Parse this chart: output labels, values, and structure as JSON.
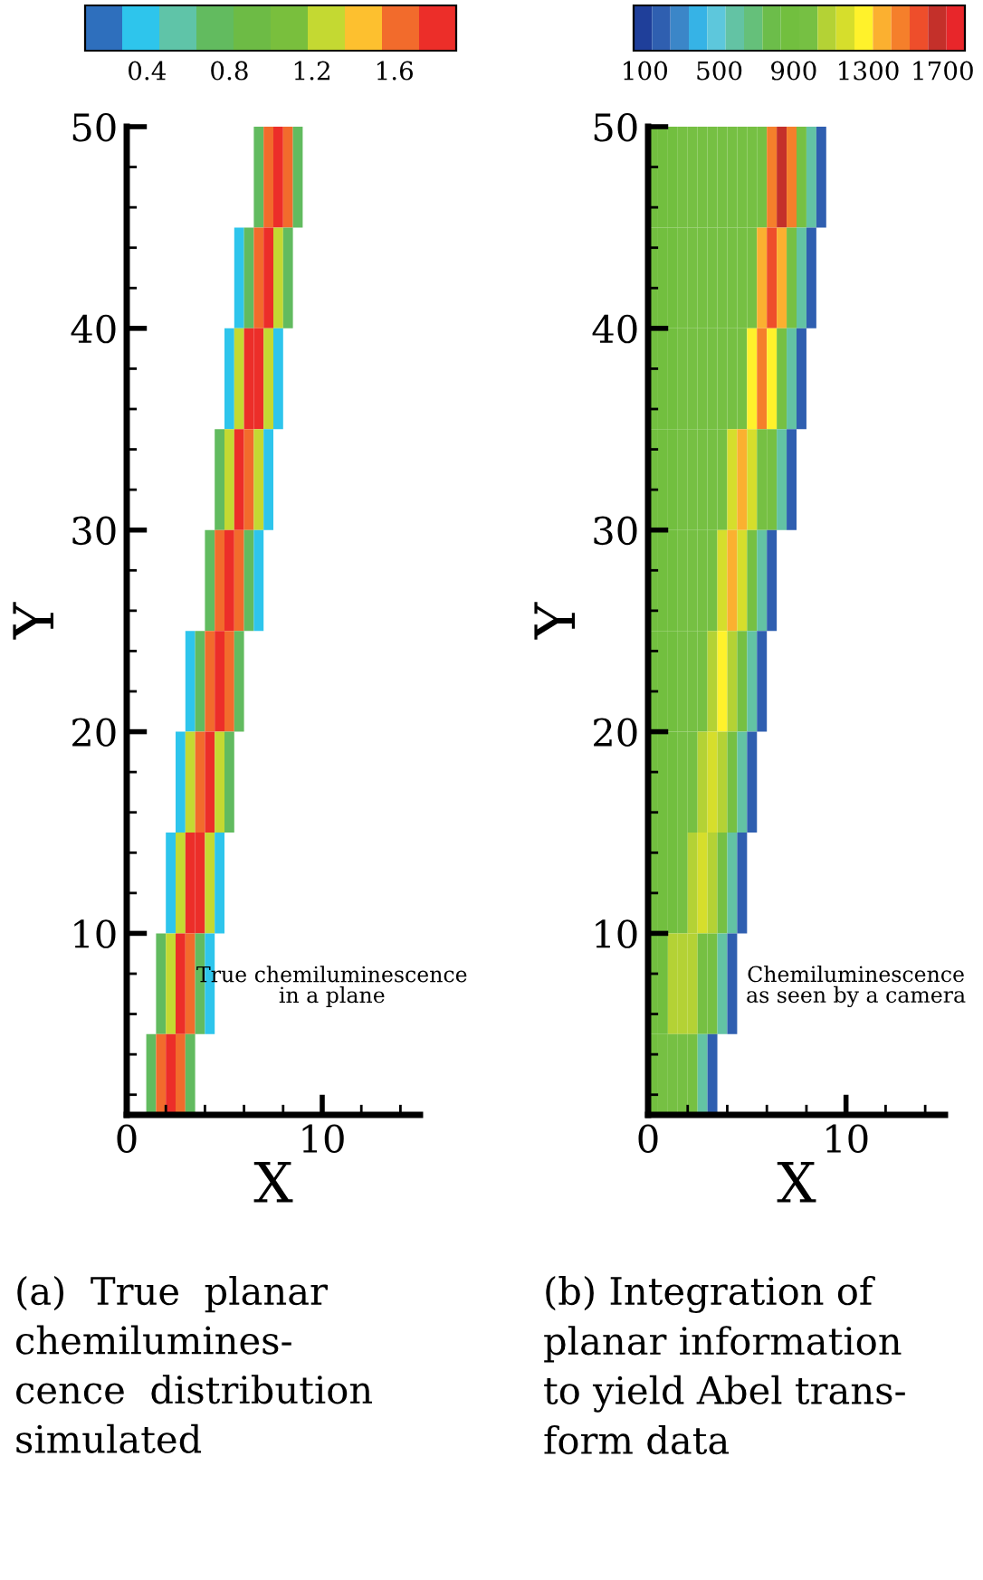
{
  "chart_data": [
    {
      "type": "heatmap",
      "xlabel": "X",
      "ylabel": "Y",
      "annotations": [
        "True chemiluminescence\nin a plane",
        "(a)  True  planar\nchemilumines-\ncence  distribution\nsimulated"
      ],
      "xlim": [
        0,
        15
      ],
      "xticks": [
        0,
        10
      ],
      "ylim": [
        1,
        50
      ],
      "yticks": [
        10,
        20,
        30,
        40,
        50
      ],
      "clim": [
        0.1,
        1.9
      ],
      "cticks": [
        0.4,
        0.8,
        1.2,
        1.6
      ],
      "colors": [
        "#2e6fbd",
        "#2ec5ec",
        "#5fc4a8",
        "#62bb5f",
        "#6dbb45",
        "#79bf3d",
        "#c4d932",
        "#fdc02f",
        "#f26b2c",
        "#ec2e29"
      ],
      "x": [
        0.25,
        0.75,
        1.25,
        1.75,
        2.25,
        2.75,
        3.25,
        3.75,
        4.25,
        4.75,
        5.25,
        5.75,
        6.25,
        6.75,
        7.25,
        7.75,
        8.25,
        8.75,
        9.25,
        9.75
      ],
      "y": [
        47.5,
        42.5,
        37.5,
        32.5,
        27.5,
        22.5,
        17.5,
        12.5,
        7.5,
        2.5
      ],
      "cells": [
        [
          null,
          null,
          null,
          null,
          null,
          null,
          null,
          null,
          null,
          null,
          null,
          null,
          null,
          0.8,
          1.6,
          1.8,
          1.6,
          0.8,
          null,
          null
        ],
        [
          null,
          null,
          null,
          null,
          null,
          null,
          null,
          null,
          null,
          null,
          null,
          0.4,
          0.8,
          1.6,
          1.8,
          1.2,
          0.8,
          null,
          null,
          null
        ],
        [
          null,
          null,
          null,
          null,
          null,
          null,
          null,
          null,
          null,
          null,
          0.4,
          1.2,
          1.8,
          1.8,
          1.2,
          0.4,
          null,
          null,
          null,
          null
        ],
        [
          null,
          null,
          null,
          null,
          null,
          null,
          null,
          null,
          null,
          0.8,
          1.2,
          1.8,
          1.6,
          1.2,
          0.4,
          null,
          null,
          null,
          null,
          null
        ],
        [
          null,
          null,
          null,
          null,
          null,
          null,
          null,
          null,
          0.8,
          1.6,
          1.8,
          1.6,
          0.8,
          0.4,
          null,
          null,
          null,
          null,
          null,
          null
        ],
        [
          null,
          null,
          null,
          null,
          null,
          null,
          0.4,
          0.8,
          1.6,
          1.8,
          1.6,
          0.8,
          null,
          null,
          null,
          null,
          null,
          null,
          null,
          null
        ],
        [
          null,
          null,
          null,
          null,
          null,
          0.4,
          1.2,
          1.6,
          1.8,
          1.2,
          0.8,
          null,
          null,
          null,
          null,
          null,
          null,
          null,
          null,
          null
        ],
        [
          null,
          null,
          null,
          null,
          0.4,
          1.2,
          1.8,
          1.8,
          1.2,
          0.4,
          null,
          null,
          null,
          null,
          null,
          null,
          null,
          null,
          null,
          null
        ],
        [
          null,
          null,
          null,
          0.8,
          1.2,
          1.8,
          1.6,
          0.8,
          0.4,
          null,
          null,
          null,
          null,
          null,
          null,
          null,
          null,
          null,
          null,
          null
        ],
        [
          null,
          null,
          0.8,
          1.6,
          1.8,
          1.6,
          0.8,
          null,
          null,
          null,
          null,
          null,
          null,
          null,
          null,
          null,
          null,
          null,
          null,
          null
        ]
      ]
    },
    {
      "type": "heatmap",
      "xlabel": "X",
      "ylabel": "Y",
      "annotations": [
        "Chemiluminescence\nas seen by a camera",
        "(b) Integration of\nplanar information\nto yield Abel trans-\nform data"
      ],
      "xlim": [
        0,
        15
      ],
      "xticks": [
        0,
        10
      ],
      "ylim": [
        1,
        50
      ],
      "yticks": [
        10,
        20,
        30,
        40,
        50
      ],
      "clim": [
        40,
        1820
      ],
      "cticks": [
        100,
        500,
        900,
        1300,
        1700
      ],
      "colors": [
        "#1f3f9a",
        "#2f5fb0",
        "#3b86c8",
        "#36b3e6",
        "#5dc7dc",
        "#63c3a4",
        "#65c07a",
        "#6cbd4a",
        "#72bf3f",
        "#76c043",
        "#b4d235",
        "#d6de2c",
        "#fff22b",
        "#fbb030",
        "#f57f2b",
        "#ee4e2b",
        "#c4302a",
        "#e8262a"
      ],
      "x": [
        0.25,
        0.75,
        1.25,
        1.75,
        2.25,
        2.75,
        3.25,
        3.75,
        4.25,
        4.75,
        5.25,
        5.75,
        6.25,
        6.75,
        7.25,
        7.75,
        8.25,
        8.75,
        9.25,
        9.75
      ],
      "y": [
        47.5,
        42.5,
        37.5,
        32.5,
        27.5,
        22.5,
        17.5,
        12.5,
        7.5,
        2.5
      ],
      "cells": [
        [
          900,
          900,
          900,
          1000,
          1000,
          1000,
          1000,
          1000,
          1000,
          1000,
          1000,
          1000,
          1450,
          1700,
          1450,
          1000,
          600,
          200,
          null,
          null
        ],
        [
          900,
          900,
          900,
          1000,
          1000,
          1000,
          1000,
          1000,
          1000,
          1000,
          1000,
          1350,
          1600,
          1350,
          1000,
          600,
          200,
          null,
          null,
          null
        ],
        [
          900,
          900,
          900,
          1000,
          1000,
          1000,
          1000,
          1000,
          1000,
          1000,
          1250,
          1500,
          1250,
          1000,
          600,
          200,
          null,
          null,
          null,
          null
        ],
        [
          900,
          900,
          900,
          1000,
          1000,
          1000,
          1000,
          1000,
          1200,
          1400,
          1200,
          1000,
          1000,
          600,
          200,
          null,
          null,
          null,
          null,
          null
        ],
        [
          900,
          900,
          900,
          1000,
          1000,
          1000,
          1000,
          1150,
          1350,
          1150,
          1000,
          600,
          200,
          null,
          null,
          null,
          null,
          null,
          null,
          null
        ],
        [
          900,
          900,
          900,
          1000,
          1000,
          1000,
          1100,
          1300,
          1100,
          1000,
          600,
          200,
          null,
          null,
          null,
          null,
          null,
          null,
          null,
          null
        ],
        [
          900,
          900,
          900,
          1000,
          1000,
          1100,
          1200,
          1100,
          1000,
          600,
          200,
          null,
          null,
          null,
          null,
          null,
          null,
          null,
          null,
          null
        ],
        [
          900,
          900,
          900,
          1000,
          1050,
          1150,
          1050,
          1000,
          600,
          200,
          null,
          null,
          null,
          null,
          null,
          null,
          null,
          null,
          null,
          null
        ],
        [
          900,
          900,
          1050,
          1100,
          1050,
          1000,
          1000,
          600,
          200,
          null,
          null,
          null,
          null,
          null,
          null,
          null,
          null,
          null,
          null,
          null
        ],
        [
          900,
          950,
          1000,
          1000,
          1000,
          600,
          200,
          null,
          null,
          null,
          null,
          null,
          null,
          null,
          null,
          null,
          null,
          null,
          null,
          null
        ]
      ]
    }
  ]
}
